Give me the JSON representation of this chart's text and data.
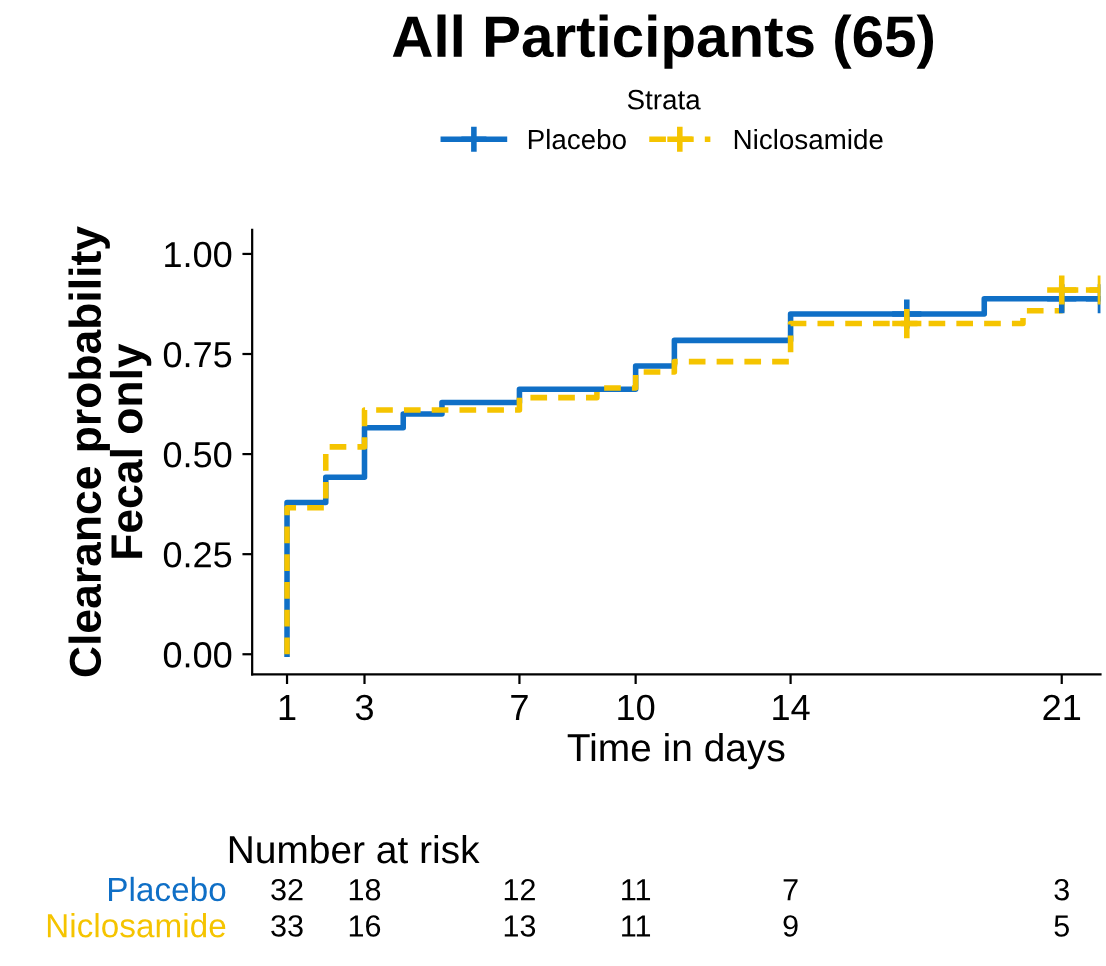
{
  "chart_data": [
    {
      "type": "step",
      "title": "All Participants (65)",
      "xlabel": "Time in days",
      "ylabel": "Clearance probability\nFecal only",
      "legend_title": "Strata",
      "legend": "top",
      "xlim": [
        0.1,
        22
      ],
      "xticks": [
        1,
        3,
        7,
        10,
        14,
        21
      ],
      "ylim": [
        -0.05,
        1.06
      ],
      "yticks": [
        {
          "value": 0,
          "label": "0.00"
        },
        {
          "value": 0.25,
          "label": "0.25"
        },
        {
          "value": 0.5,
          "label": "0.50"
        },
        {
          "value": 0.75,
          "label": "0.75"
        },
        {
          "value": 1,
          "label": "1.00"
        }
      ],
      "grid": false,
      "series": [
        {
          "name": "Placebo",
          "color": "#0f6fc6",
          "line_style": "solid",
          "x": [
            1,
            1,
            2,
            3,
            4,
            5,
            7,
            10,
            11,
            14,
            19,
            22
          ],
          "values": [
            0,
            0.379,
            0.442,
            0.566,
            0.6,
            0.629,
            0.662,
            0.72,
            0.784,
            0.85,
            0.888,
            0.888
          ]
        },
        {
          "name": "Niclosamide",
          "color": "#f5c400",
          "line_style": "dashed",
          "x": [
            1,
            1,
            2,
            3,
            7,
            9,
            10,
            11,
            14,
            20,
            21,
            22
          ],
          "values": [
            0,
            0.366,
            0.518,
            0.61,
            0.641,
            0.665,
            0.705,
            0.731,
            0.826,
            0.858,
            0.91,
            0.91
          ]
        },
        {
          "type": "scatter",
          "marker": "cross",
          "color": "#0f6fc6",
          "x": [
            17,
            21,
            22
          ],
          "values": [
            0.85,
            0.888,
            0.888
          ]
        },
        {
          "type": "scatter",
          "marker": "cross",
          "color": "#f5c400",
          "x": [
            17,
            21,
            22
          ],
          "values": [
            0.826,
            0.91,
            0.91
          ]
        }
      ]
    },
    {
      "type": "other",
      "title": "Number at risk",
      "annotations": [
        "Placebo",
        "32",
        "18",
        "12",
        "11",
        "7",
        "3",
        "Niclosamide",
        "33",
        "16",
        "13",
        "11",
        "9",
        "5"
      ]
    }
  ]
}
